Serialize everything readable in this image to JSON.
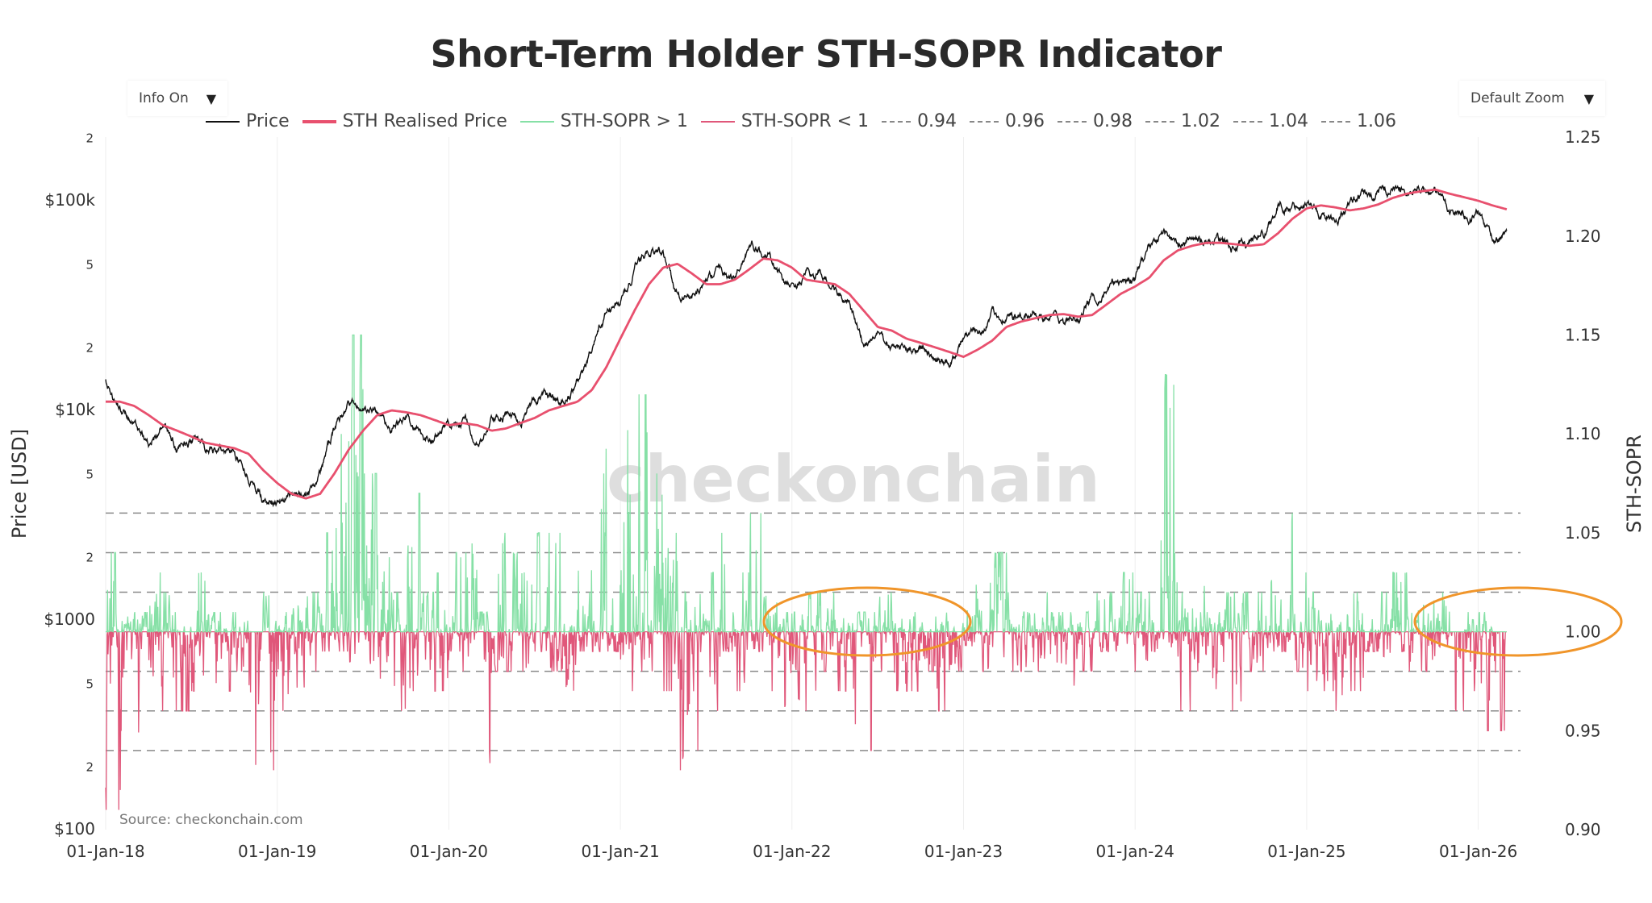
{
  "title": "Short-Term Holder STH-SOPR Indicator",
  "controls": {
    "info_label": "Info On",
    "zoom_label": "Default Zoom",
    "dropdown_icon": "triangle-down"
  },
  "legend": [
    {
      "label": "Price",
      "color": "#111111",
      "style": "solid"
    },
    {
      "label": "STH Realised Price",
      "color": "#e8506e",
      "style": "solid-thick"
    },
    {
      "label": "STH-SOPR > 1",
      "color": "#86e0a6",
      "style": "solid"
    },
    {
      "label": "STH-SOPR < 1",
      "color": "#e0577a",
      "style": "solid"
    },
    {
      "label": "0.94",
      "color": "#888888",
      "style": "dash"
    },
    {
      "label": "0.96",
      "color": "#888888",
      "style": "dash"
    },
    {
      "label": "0.98",
      "color": "#888888",
      "style": "dash"
    },
    {
      "label": "1.02",
      "color": "#888888",
      "style": "dash"
    },
    {
      "label": "1.04",
      "color": "#888888",
      "style": "dash"
    },
    {
      "label": "1.06",
      "color": "#888888",
      "style": "dash"
    }
  ],
  "watermark": "checkonchain",
  "source": "Source: checkonchain.com",
  "chart_data": {
    "type": "line",
    "title": "Short-Term Holder STH-SOPR Indicator",
    "x_start": "2018-01",
    "x_frequency": "monthly",
    "x_ticks": [
      "01-Jan-18",
      "01-Jan-19",
      "01-Jan-20",
      "01-Jan-21",
      "01-Jan-22",
      "01-Jan-23",
      "01-Jan-24",
      "01-Jan-25",
      "01-Jan-26"
    ],
    "y_left": {
      "label": "Price [USD]",
      "scale": "log",
      "range": [
        100,
        200000
      ],
      "ticks": [
        "$100",
        "2",
        "5",
        "$1000",
        "2",
        "5",
        "$10k",
        "2",
        "5",
        "$100k",
        "2"
      ],
      "tick_values": [
        100,
        200,
        500,
        1000,
        2000,
        5000,
        10000,
        20000,
        50000,
        100000,
        200000
      ]
    },
    "y_right": {
      "label": "STH-SOPR",
      "scale": "linear",
      "range": [
        0.9,
        1.25
      ],
      "ticks": [
        "0.90",
        "0.95",
        "1.00",
        "1.05",
        "1.10",
        "1.15",
        "1.20",
        "1.25"
      ]
    },
    "grid": "vertical",
    "legend_position": "top",
    "reference_lines": [
      0.94,
      0.96,
      0.98,
      1.02,
      1.04,
      1.06
    ],
    "series": [
      {
        "name": "Price",
        "axis": "left",
        "values": [
          14000,
          10000,
          9000,
          7000,
          8500,
          6500,
          7500,
          6500,
          6500,
          6400,
          5000,
          3800,
          3600,
          3700,
          4000,
          5200,
          8000,
          11000,
          10000,
          10000,
          8300,
          9200,
          7500,
          7200,
          8500,
          9500,
          6500,
          8600,
          9500,
          9200,
          11300,
          11700,
          10800,
          13500,
          19000,
          28900,
          33000,
          45000,
          58000,
          57000,
          37000,
          35000,
          41000,
          47000,
          43000,
          61000,
          57000,
          46000,
          38000,
          43000,
          45000,
          38000,
          31000,
          20000,
          23000,
          20000,
          19400,
          20500,
          17000,
          16500,
          23000,
          23500,
          28000,
          29000,
          27000,
          30400,
          29000,
          26000,
          27000,
          34500,
          37700,
          42000,
          42500,
          61000,
          71000,
          60000,
          67000,
          62000,
          64000,
          59000,
          63000,
          70000,
          96000,
          93000,
          102000,
          84000,
          82000,
          94000,
          104000,
          107000,
          115000,
          108000,
          114000,
          109000,
          90000,
          87000,
          88000,
          66000,
          70000
        ]
      },
      {
        "name": "STH Realised Price",
        "axis": "left",
        "values": [
          11000,
          11000,
          10500,
          9500,
          8500,
          8000,
          7500,
          7000,
          6800,
          6600,
          6200,
          5200,
          4500,
          4000,
          3800,
          4000,
          5000,
          6500,
          8000,
          9500,
          10000,
          9800,
          9500,
          9000,
          8500,
          8700,
          8500,
          8000,
          8200,
          8700,
          9200,
          10000,
          10500,
          11000,
          12500,
          16000,
          22000,
          30000,
          40000,
          48000,
          50000,
          45000,
          40000,
          40000,
          42000,
          47000,
          53000,
          52000,
          48000,
          42000,
          41000,
          40000,
          36000,
          30000,
          25000,
          24000,
          22000,
          21000,
          20000,
          19000,
          18000,
          19500,
          21500,
          25000,
          26500,
          27500,
          28500,
          28800,
          28000,
          28500,
          32000,
          36000,
          39000,
          43000,
          52000,
          58000,
          61000,
          63000,
          63000,
          62000,
          61000,
          62000,
          70000,
          82000,
          92000,
          95000,
          93000,
          90000,
          92000,
          96000,
          103000,
          108000,
          111000,
          113000,
          108000,
          104000,
          100000,
          95000,
          91000
        ]
      },
      {
        "name": "STH-SOPR",
        "axis": "right",
        "monthly_range": [
          [
            0.91,
            1.04
          ],
          [
            0.92,
            1.01
          ],
          [
            0.93,
            1.01
          ],
          [
            0.96,
            1.03
          ],
          [
            0.95,
            1.02
          ],
          [
            0.96,
            1.01
          ],
          [
            0.97,
            1.03
          ],
          [
            0.96,
            1.01
          ],
          [
            0.97,
            1.01
          ],
          [
            0.98,
            1.01
          ],
          [
            0.92,
            1.0
          ],
          [
            0.93,
            1.02
          ],
          [
            0.96,
            1.01
          ],
          [
            0.97,
            1.02
          ],
          [
            0.98,
            1.02
          ],
          [
            0.99,
            1.05
          ],
          [
            0.99,
            1.1
          ],
          [
            0.98,
            1.15
          ],
          [
            0.97,
            1.08
          ],
          [
            0.97,
            1.04
          ],
          [
            0.96,
            1.02
          ],
          [
            0.97,
            1.07
          ],
          [
            0.96,
            1.02
          ],
          [
            0.97,
            1.03
          ],
          [
            0.99,
            1.04
          ],
          [
            0.98,
            1.05
          ],
          [
            0.91,
            1.01
          ],
          [
            0.98,
            1.05
          ],
          [
            0.98,
            1.04
          ],
          [
            0.98,
            1.03
          ],
          [
            0.99,
            1.05
          ],
          [
            0.98,
            1.05
          ],
          [
            0.97,
            1.02
          ],
          [
            0.99,
            1.05
          ],
          [
            0.99,
            1.08
          ],
          [
            0.99,
            1.1
          ],
          [
            0.97,
            1.15
          ],
          [
            0.98,
            1.12
          ],
          [
            0.98,
            1.08
          ],
          [
            0.97,
            1.05
          ],
          [
            0.93,
            1.02
          ],
          [
            0.94,
            1.02
          ],
          [
            0.96,
            1.03
          ],
          [
            0.99,
            1.05
          ],
          [
            0.97,
            1.03
          ],
          [
            0.99,
            1.06
          ],
          [
            0.97,
            1.02
          ],
          [
            0.96,
            1.01
          ],
          [
            0.96,
            1.01
          ],
          [
            0.97,
            1.02
          ],
          [
            0.98,
            1.02
          ],
          [
            0.97,
            1.01
          ],
          [
            0.95,
            1.01
          ],
          [
            0.94,
            1.01
          ],
          [
            0.98,
            1.02
          ],
          [
            0.97,
            1.02
          ],
          [
            0.97,
            1.01
          ],
          [
            0.98,
            1.01
          ],
          [
            0.96,
            1.01
          ],
          [
            0.98,
            1.01
          ],
          [
            0.99,
            1.04
          ],
          [
            0.98,
            1.03
          ],
          [
            0.97,
            1.04
          ],
          [
            0.98,
            1.02
          ],
          [
            0.98,
            1.01
          ],
          [
            0.98,
            1.02
          ],
          [
            0.98,
            1.01
          ],
          [
            0.97,
            1.01
          ],
          [
            0.98,
            1.01
          ],
          [
            0.99,
            1.03
          ],
          [
            0.99,
            1.02
          ],
          [
            0.99,
            1.03
          ],
          [
            0.98,
            1.02
          ],
          [
            0.99,
            1.05
          ],
          [
            0.99,
            1.13
          ],
          [
            0.96,
            1.02
          ],
          [
            0.98,
            1.03
          ],
          [
            0.97,
            1.01
          ],
          [
            0.96,
            1.02
          ],
          [
            0.95,
            1.02
          ],
          [
            0.98,
            1.02
          ],
          [
            0.99,
            1.03
          ],
          [
            0.99,
            1.06
          ],
          [
            0.98,
            1.03
          ],
          [
            0.97,
            1.02
          ],
          [
            0.97,
            1.01
          ],
          [
            0.96,
            1.01
          ],
          [
            0.97,
            1.02
          ],
          [
            0.99,
            1.03
          ],
          [
            0.98,
            1.02
          ],
          [
            0.99,
            1.03
          ],
          [
            0.98,
            1.02
          ],
          [
            0.98,
            1.02
          ],
          [
            0.98,
            1.02
          ],
          [
            0.96,
            1.0
          ],
          [
            0.97,
            1.01
          ],
          [
            0.95,
            1.01
          ],
          [
            0.95,
            1.0
          ],
          [
            0.97,
            1.01
          ]
        ]
      }
    ],
    "annotations": [
      {
        "type": "ellipse",
        "color": "#f0952a",
        "x_range": [
          "2021-11",
          "2022-11"
        ],
        "y_center": 1.01
      },
      {
        "type": "ellipse",
        "color": "#f0952a",
        "x_range": [
          "2025-09",
          "2026-09"
        ],
        "y_center": 1.01
      }
    ]
  }
}
